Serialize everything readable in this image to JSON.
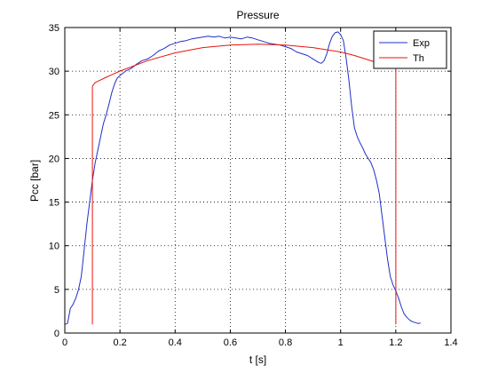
{
  "chart_data": {
    "type": "line",
    "title": "Pressure",
    "xlabel": "t [s]",
    "ylabel": "Pcc [bar]",
    "xlim": [
      0,
      1.4
    ],
    "ylim": [
      0,
      35
    ],
    "xticks": [
      "0",
      "0.2",
      "0.4",
      "0.6",
      "0.8",
      "1",
      "1.2",
      "1.4"
    ],
    "yticks": [
      "0",
      "5",
      "10",
      "15",
      "20",
      "25",
      "30",
      "35"
    ],
    "grid": true,
    "legend": "top-right",
    "series": [
      {
        "name": "Exp",
        "color": "#1f2fc8",
        "x": [
          0.0,
          0.01,
          0.02,
          0.03,
          0.04,
          0.05,
          0.06,
          0.07,
          0.08,
          0.09,
          0.1,
          0.11,
          0.12,
          0.13,
          0.14,
          0.15,
          0.16,
          0.17,
          0.18,
          0.19,
          0.2,
          0.22,
          0.24,
          0.26,
          0.28,
          0.3,
          0.32,
          0.34,
          0.36,
          0.38,
          0.4,
          0.42,
          0.44,
          0.46,
          0.48,
          0.5,
          0.52,
          0.54,
          0.56,
          0.58,
          0.6,
          0.62,
          0.64,
          0.66,
          0.68,
          0.7,
          0.72,
          0.74,
          0.76,
          0.78,
          0.8,
          0.82,
          0.84,
          0.86,
          0.88,
          0.9,
          0.92,
          0.93,
          0.94,
          0.95,
          0.96,
          0.97,
          0.98,
          0.99,
          1.0,
          1.01,
          1.02,
          1.03,
          1.04,
          1.05,
          1.06,
          1.07,
          1.08,
          1.09,
          1.1,
          1.11,
          1.12,
          1.13,
          1.14,
          1.15,
          1.16,
          1.17,
          1.18,
          1.19,
          1.2,
          1.21,
          1.22,
          1.23,
          1.24,
          1.25,
          1.26,
          1.27,
          1.28,
          1.29
        ],
        "y": [
          1.0,
          1.1,
          2.8,
          3.3,
          4.0,
          5.0,
          6.5,
          9.5,
          12.5,
          15.0,
          17.5,
          19.5,
          21.0,
          22.5,
          24.0,
          25.0,
          26.2,
          27.5,
          28.5,
          29.2,
          29.5,
          30.0,
          30.3,
          30.8,
          31.2,
          31.4,
          31.8,
          32.3,
          32.6,
          33.0,
          33.2,
          33.4,
          33.5,
          33.7,
          33.8,
          33.9,
          34.0,
          33.9,
          34.0,
          33.8,
          33.9,
          33.8,
          33.7,
          33.9,
          33.8,
          33.6,
          33.4,
          33.2,
          33.1,
          33.0,
          32.8,
          32.6,
          32.2,
          32.0,
          31.8,
          31.4,
          31.0,
          30.9,
          31.2,
          32.0,
          33.2,
          34.0,
          34.4,
          34.5,
          34.2,
          33.5,
          31.5,
          29.0,
          26.0,
          23.5,
          22.5,
          21.8,
          21.2,
          20.5,
          20.0,
          19.5,
          18.7,
          17.5,
          16.0,
          13.5,
          11.0,
          8.5,
          6.5,
          5.5,
          4.8,
          4.0,
          3.0,
          2.2,
          1.8,
          1.5,
          1.3,
          1.2,
          1.1,
          1.15
        ]
      },
      {
        "name": "Th",
        "color": "#e8140c",
        "x": [
          0.1,
          0.1,
          0.11,
          0.15,
          0.2,
          0.3,
          0.4,
          0.5,
          0.6,
          0.7,
          0.8,
          0.9,
          1.0,
          1.05,
          1.1,
          1.15,
          1.19,
          1.2,
          1.2
        ],
        "y": [
          1.0,
          28.3,
          28.7,
          29.3,
          30.0,
          31.2,
          32.1,
          32.7,
          33.0,
          33.1,
          33.0,
          32.7,
          32.2,
          31.8,
          31.3,
          30.8,
          30.4,
          30.3,
          1.0
        ]
      }
    ]
  }
}
